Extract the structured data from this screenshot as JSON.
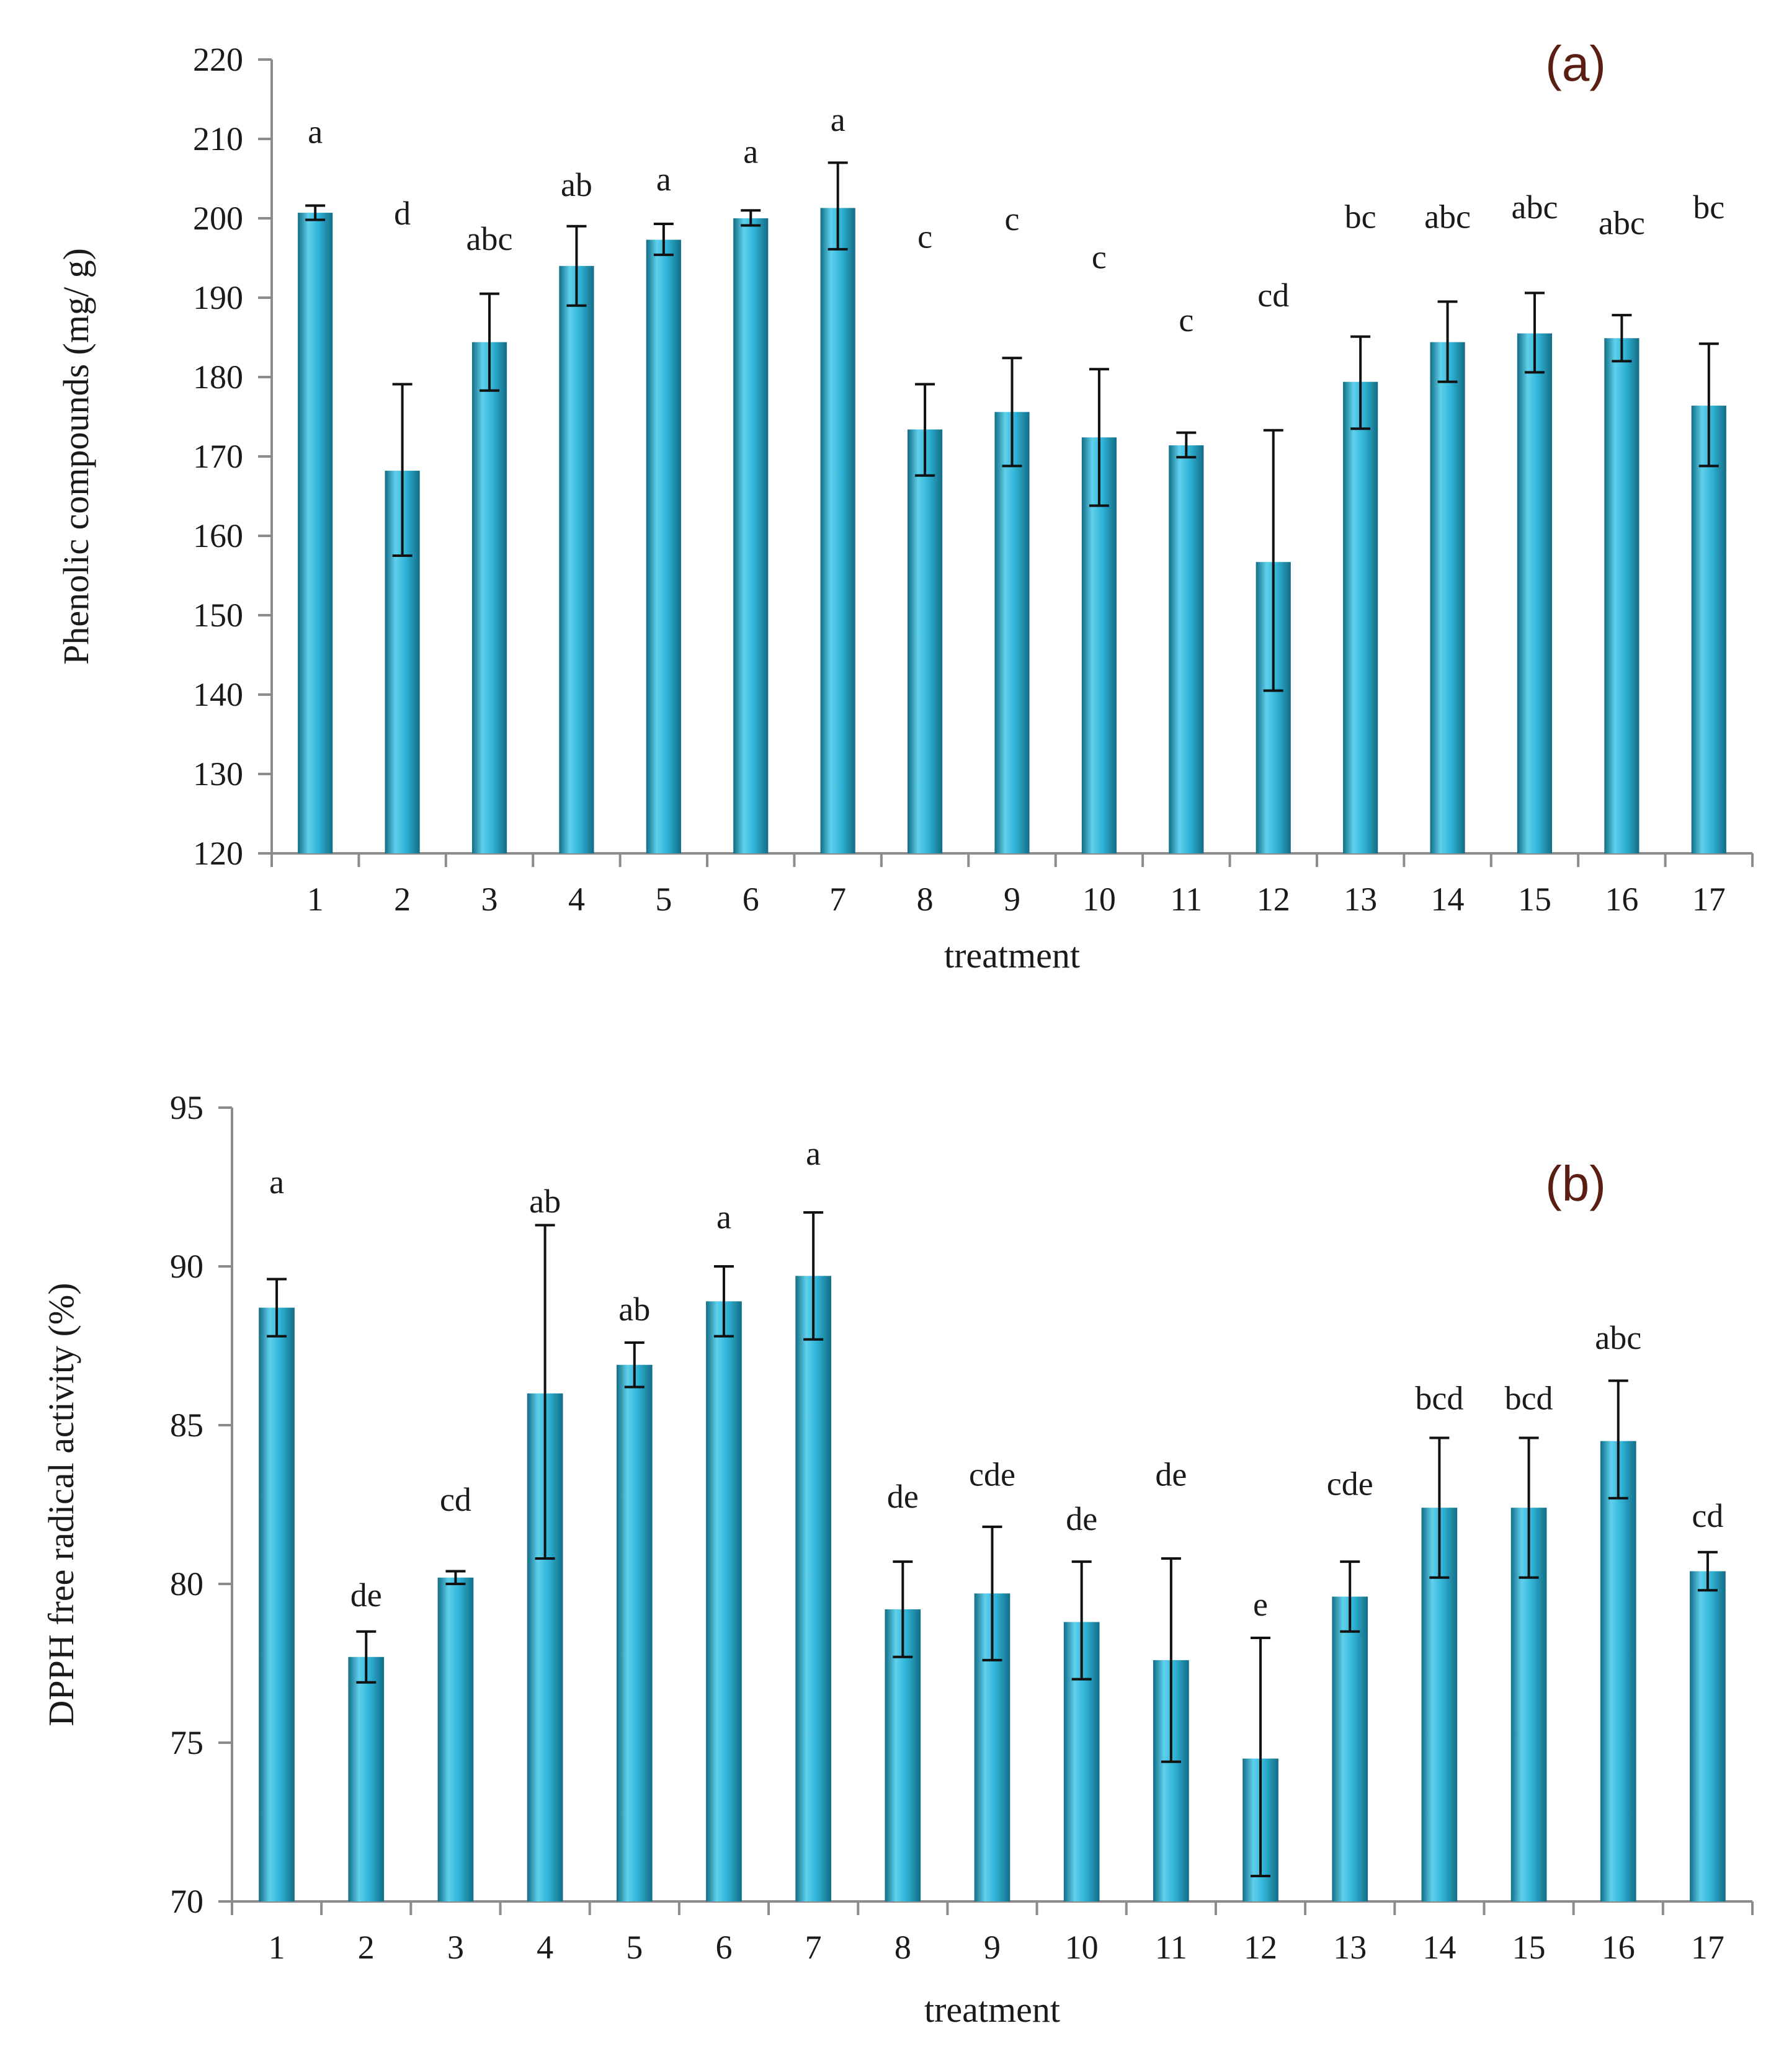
{
  "colors": {
    "bar_light": "#5fd0ec",
    "bar_mid": "#2fb3d6",
    "bar_dark": "#136d86",
    "axis": "#8c8c8c",
    "text": "#1a1a1a",
    "panel_label": "#5a1e12"
  },
  "chart_data": [
    {
      "type": "bar",
      "panel_label": "(a)",
      "xlabel": "treatment",
      "ylabel": "Phenolic compounds (mg/ g)",
      "ylim": [
        120,
        220
      ],
      "yticks": [
        120,
        130,
        140,
        150,
        160,
        170,
        180,
        190,
        200,
        210,
        220
      ],
      "categories": [
        "1",
        "2",
        "3",
        "4",
        "5",
        "6",
        "7",
        "8",
        "9",
        "10",
        "11",
        "12",
        "13",
        "14",
        "15",
        "16",
        "17"
      ],
      "values": [
        200.7,
        168.2,
        184.4,
        194.0,
        197.3,
        200.0,
        201.3,
        173.4,
        175.6,
        172.4,
        171.4,
        156.7,
        179.4,
        184.4,
        185.5,
        184.9,
        176.4
      ],
      "error_low": [
        199.8,
        157.5,
        178.3,
        189.0,
        195.4,
        199.1,
        196.1,
        167.6,
        168.8,
        163.8,
        169.9,
        140.5,
        173.5,
        179.4,
        180.6,
        182.0,
        168.8
      ],
      "error_high": [
        201.6,
        179.1,
        190.5,
        199.0,
        199.3,
        201.0,
        207.0,
        179.1,
        182.4,
        181.0,
        173.0,
        173.3,
        185.1,
        189.5,
        190.6,
        187.8,
        184.2
      ],
      "letters": [
        "a",
        "d",
        "abc",
        "ab",
        "a",
        "a",
        "a",
        "c",
        "c",
        "c",
        "c",
        "cd",
        "bc",
        "abc",
        "abc",
        "abc",
        "bc"
      ],
      "letter_values": [
        209.5,
        199.2,
        196.0,
        202.8,
        203.5,
        207.0,
        211.0,
        196.3,
        198.5,
        193.7,
        185.8,
        188.9,
        198.8,
        198.8,
        200.0,
        198.0,
        200.0
      ]
    },
    {
      "type": "bar",
      "panel_label": "(b)",
      "xlabel": "treatment",
      "ylabel": "DPPH free radical activity (%)",
      "ylim": [
        70,
        95
      ],
      "yticks": [
        70,
        75,
        80,
        85,
        90,
        95
      ],
      "categories": [
        "1",
        "2",
        "3",
        "4",
        "5",
        "6",
        "7",
        "8",
        "9",
        "10",
        "11",
        "12",
        "13",
        "14",
        "15",
        "16",
        "17"
      ],
      "values": [
        88.7,
        77.7,
        80.2,
        86.0,
        86.9,
        88.9,
        89.7,
        79.2,
        79.7,
        78.8,
        77.6,
        74.5,
        79.6,
        82.4,
        82.4,
        84.5,
        80.4
      ],
      "error_low": [
        87.8,
        76.9,
        80.0,
        80.8,
        86.2,
        87.8,
        87.7,
        77.7,
        77.6,
        77.0,
        74.4,
        70.8,
        78.5,
        80.2,
        80.2,
        82.7,
        79.8
      ],
      "error_high": [
        89.6,
        78.5,
        80.4,
        91.3,
        87.6,
        90.0,
        91.7,
        80.7,
        81.8,
        80.7,
        80.8,
        78.3,
        80.7,
        84.6,
        84.6,
        86.4,
        81.0
      ],
      "letters": [
        "a",
        "de",
        "cd",
        "ab",
        "ab",
        "a",
        "a",
        "de",
        "cde",
        "de",
        "de",
        "e",
        "cde",
        "bcd",
        "bcd",
        "abc",
        "cd"
      ],
      "letter_values": [
        92.3,
        79.3,
        82.3,
        91.7,
        88.3,
        91.2,
        93.2,
        82.4,
        83.1,
        81.7,
        83.1,
        79.0,
        82.8,
        85.5,
        85.5,
        87.4,
        81.8
      ]
    }
  ]
}
